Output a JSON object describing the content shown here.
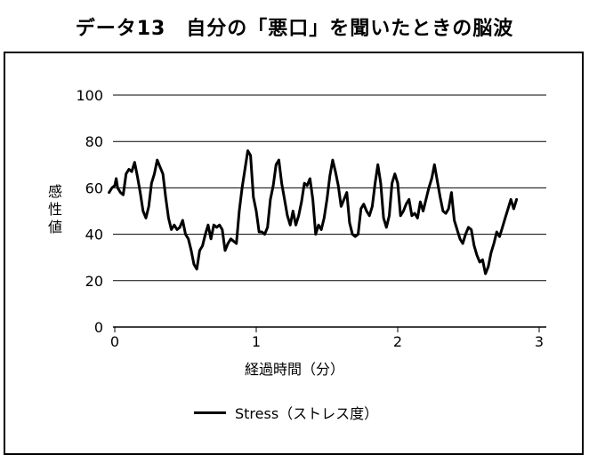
{
  "chart_data": {
    "type": "line",
    "title": "データ13　自分の「悪口」を聞いたときの脳波",
    "xlabel": "経過時間（分）",
    "ylabel": "感性値",
    "xlim": [
      0,
      3.05
    ],
    "ylim": [
      0,
      100
    ],
    "x_ticks": [
      0,
      1,
      2,
      3
    ],
    "x_tick_labels": [
      "0",
      "1",
      "2",
      "3"
    ],
    "y_ticks": [
      0,
      20,
      40,
      60,
      80,
      100
    ],
    "y_tick_labels": [
      "0",
      "20",
      "40",
      "60",
      "80",
      "100"
    ],
    "grid": "horizontal",
    "legend_position": "bottom",
    "series": [
      {
        "name": "Stress（ストレス度）",
        "color": "#000000",
        "points": [
          [
            -0.04,
            58
          ],
          [
            -0.02,
            60
          ],
          [
            0.0,
            61
          ],
          [
            0.01,
            64
          ],
          [
            0.02,
            60
          ],
          [
            0.04,
            58
          ],
          [
            0.06,
            57
          ],
          [
            0.08,
            66
          ],
          [
            0.1,
            68
          ],
          [
            0.12,
            67
          ],
          [
            0.14,
            71
          ],
          [
            0.16,
            65
          ],
          [
            0.18,
            58
          ],
          [
            0.2,
            50
          ],
          [
            0.22,
            47
          ],
          [
            0.24,
            52
          ],
          [
            0.26,
            62
          ],
          [
            0.28,
            66
          ],
          [
            0.3,
            72
          ],
          [
            0.32,
            69
          ],
          [
            0.34,
            66
          ],
          [
            0.36,
            56
          ],
          [
            0.38,
            47
          ],
          [
            0.4,
            42
          ],
          [
            0.42,
            44
          ],
          [
            0.44,
            42
          ],
          [
            0.46,
            43
          ],
          [
            0.48,
            46
          ],
          [
            0.5,
            40
          ],
          [
            0.52,
            38
          ],
          [
            0.54,
            33
          ],
          [
            0.56,
            27
          ],
          [
            0.58,
            25
          ],
          [
            0.6,
            33
          ],
          [
            0.62,
            35
          ],
          [
            0.64,
            40
          ],
          [
            0.66,
            44
          ],
          [
            0.68,
            38
          ],
          [
            0.7,
            44
          ],
          [
            0.72,
            43
          ],
          [
            0.74,
            44
          ],
          [
            0.76,
            42
          ],
          [
            0.78,
            33
          ],
          [
            0.8,
            36
          ],
          [
            0.82,
            38
          ],
          [
            0.84,
            37
          ],
          [
            0.86,
            36
          ],
          [
            0.88,
            50
          ],
          [
            0.9,
            60
          ],
          [
            0.92,
            68
          ],
          [
            0.94,
            76
          ],
          [
            0.96,
            74
          ],
          [
            0.98,
            56
          ],
          [
            1.0,
            50
          ],
          [
            1.02,
            41
          ],
          [
            1.04,
            41
          ],
          [
            1.06,
            40
          ],
          [
            1.08,
            43
          ],
          [
            1.1,
            55
          ],
          [
            1.12,
            61
          ],
          [
            1.14,
            70
          ],
          [
            1.16,
            72
          ],
          [
            1.18,
            62
          ],
          [
            1.2,
            55
          ],
          [
            1.22,
            48
          ],
          [
            1.24,
            44
          ],
          [
            1.26,
            50
          ],
          [
            1.28,
            44
          ],
          [
            1.3,
            48
          ],
          [
            1.32,
            54
          ],
          [
            1.34,
            62
          ],
          [
            1.36,
            61
          ],
          [
            1.38,
            64
          ],
          [
            1.4,
            55
          ],
          [
            1.42,
            40
          ],
          [
            1.44,
            44
          ],
          [
            1.46,
            42
          ],
          [
            1.48,
            47
          ],
          [
            1.5,
            55
          ],
          [
            1.52,
            65
          ],
          [
            1.54,
            72
          ],
          [
            1.56,
            67
          ],
          [
            1.58,
            61
          ],
          [
            1.6,
            52
          ],
          [
            1.62,
            55
          ],
          [
            1.64,
            58
          ],
          [
            1.66,
            45
          ],
          [
            1.68,
            40
          ],
          [
            1.7,
            39
          ],
          [
            1.72,
            40
          ],
          [
            1.74,
            51
          ],
          [
            1.76,
            53
          ],
          [
            1.78,
            50
          ],
          [
            1.8,
            48
          ],
          [
            1.82,
            52
          ],
          [
            1.84,
            62
          ],
          [
            1.86,
            70
          ],
          [
            1.88,
            62
          ],
          [
            1.9,
            47
          ],
          [
            1.92,
            43
          ],
          [
            1.94,
            48
          ],
          [
            1.96,
            62
          ],
          [
            1.98,
            66
          ],
          [
            2.0,
            62
          ],
          [
            2.02,
            48
          ],
          [
            2.04,
            50
          ],
          [
            2.06,
            53
          ],
          [
            2.08,
            55
          ],
          [
            2.1,
            48
          ],
          [
            2.12,
            49
          ],
          [
            2.14,
            47
          ],
          [
            2.16,
            54
          ],
          [
            2.18,
            50
          ],
          [
            2.2,
            55
          ],
          [
            2.22,
            60
          ],
          [
            2.24,
            64
          ],
          [
            2.26,
            70
          ],
          [
            2.28,
            63
          ],
          [
            2.3,
            56
          ],
          [
            2.32,
            50
          ],
          [
            2.34,
            49
          ],
          [
            2.36,
            51
          ],
          [
            2.38,
            58
          ],
          [
            2.4,
            46
          ],
          [
            2.42,
            42
          ],
          [
            2.44,
            38
          ],
          [
            2.46,
            36
          ],
          [
            2.48,
            40
          ],
          [
            2.5,
            43
          ],
          [
            2.52,
            42
          ],
          [
            2.54,
            35
          ],
          [
            2.56,
            31
          ],
          [
            2.58,
            28
          ],
          [
            2.6,
            29
          ],
          [
            2.62,
            23
          ],
          [
            2.64,
            26
          ],
          [
            2.66,
            32
          ],
          [
            2.68,
            36
          ],
          [
            2.7,
            41
          ],
          [
            2.72,
            39
          ],
          [
            2.74,
            43
          ],
          [
            2.76,
            47
          ],
          [
            2.78,
            51
          ],
          [
            2.8,
            55
          ],
          [
            2.82,
            51
          ],
          [
            2.84,
            55
          ]
        ]
      }
    ]
  }
}
